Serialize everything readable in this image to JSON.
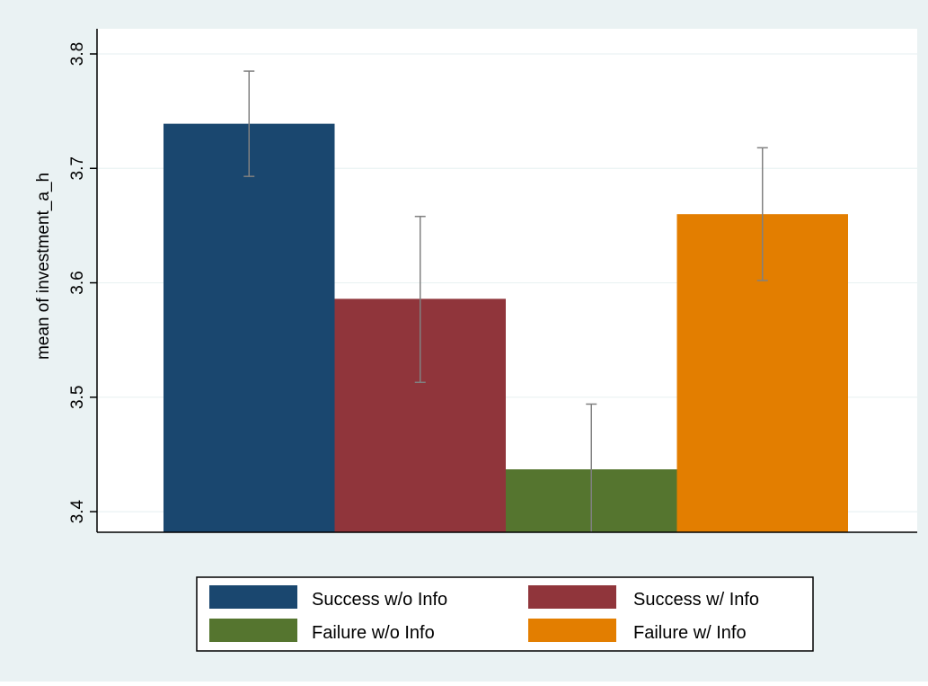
{
  "chart_data": {
    "type": "bar",
    "title": "",
    "xlabel": "",
    "ylabel": "mean of investment_a_h",
    "ylim": [
      3.382,
      3.822
    ],
    "yticks": [
      3.4,
      3.5,
      3.6,
      3.7,
      3.8
    ],
    "ytick_labels": [
      "3.4",
      "3.5",
      "3.6",
      "3.7",
      "3.8"
    ],
    "grid": true,
    "legend_position": "bottom",
    "error_bars": true,
    "series": [
      {
        "name": "Success w/o Info",
        "value": 3.739,
        "ci": [
          3.693,
          3.785
        ],
        "color": "#1a476f"
      },
      {
        "name": "Success w/ Info",
        "value": 3.586,
        "ci": [
          3.513,
          3.658
        ],
        "color": "#90353b"
      },
      {
        "name": "Failure w/o Info",
        "value": 3.437,
        "ci": [
          3.38,
          3.494
        ],
        "color": "#55752f"
      },
      {
        "name": "Failure w/ Info",
        "value": 3.66,
        "ci": [
          3.602,
          3.718
        ],
        "color": "#e37e00"
      }
    ]
  },
  "colors": {
    "outer_background": "#eaf2f3",
    "plot_background": "#ffffff",
    "grid": "#eaf2f3",
    "error_bar": "#808080",
    "axis": "#000000"
  }
}
